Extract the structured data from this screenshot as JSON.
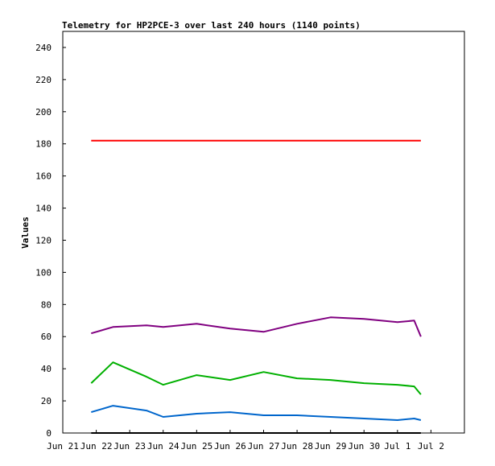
{
  "chart_data": {
    "type": "line",
    "title": "Telemetry for HP2PCE-3 over last 240 hours (1140 points)",
    "xlabel": "",
    "ylabel": "Values",
    "ylim": [
      0,
      250
    ],
    "xlim": [
      0,
      12.0
    ],
    "yticks": [
      0,
      20,
      40,
      60,
      80,
      100,
      120,
      140,
      160,
      180,
      200,
      220,
      240
    ],
    "xtick_labels": [
      "Jun 21",
      "Jun 22",
      "Jun 23",
      "Jun 24",
      "Jun 25",
      "Jun 26",
      "Jun 27",
      "Jun 28",
      "Jun 29",
      "Jun 30",
      "Jul 1",
      "Jul 2"
    ],
    "x_days": [
      0,
      1,
      2,
      3,
      4,
      5,
      6,
      7,
      8,
      9,
      10,
      11,
      12
    ],
    "xtick_day_positions": [
      0,
      1,
      2,
      3,
      4,
      5,
      6,
      7,
      8,
      9,
      10,
      11
    ],
    "series": [
      {
        "color": "#ff0000",
        "values": [
          182,
          182,
          182,
          182,
          182,
          182,
          182,
          182,
          182,
          182,
          182,
          182,
          182
        ]
      },
      {
        "color": "#800080",
        "values": [
          62,
          66,
          67,
          66,
          68,
          65,
          63,
          68,
          72,
          71,
          69,
          70,
          60
        ]
      },
      {
        "color": "#00b000",
        "values": [
          31,
          44,
          35,
          30,
          36,
          33,
          38,
          34,
          33,
          31,
          30,
          29,
          24
        ]
      },
      {
        "color": "#0066cc",
        "values": [
          13,
          17,
          14,
          10,
          12,
          13,
          11,
          11,
          10,
          9,
          8,
          9,
          8
        ]
      },
      {
        "color": "#000000",
        "values": [
          0,
          0,
          0,
          0,
          0,
          0,
          0,
          0,
          0,
          0,
          0,
          0,
          0
        ]
      }
    ],
    "series_days": [
      0.85,
      1.5,
      2.5,
      3.0,
      4.0,
      5.0,
      6.0,
      7.0,
      8.0,
      9.0,
      10.0,
      10.5,
      10.7
    ],
    "grid": false,
    "legend": "none"
  }
}
